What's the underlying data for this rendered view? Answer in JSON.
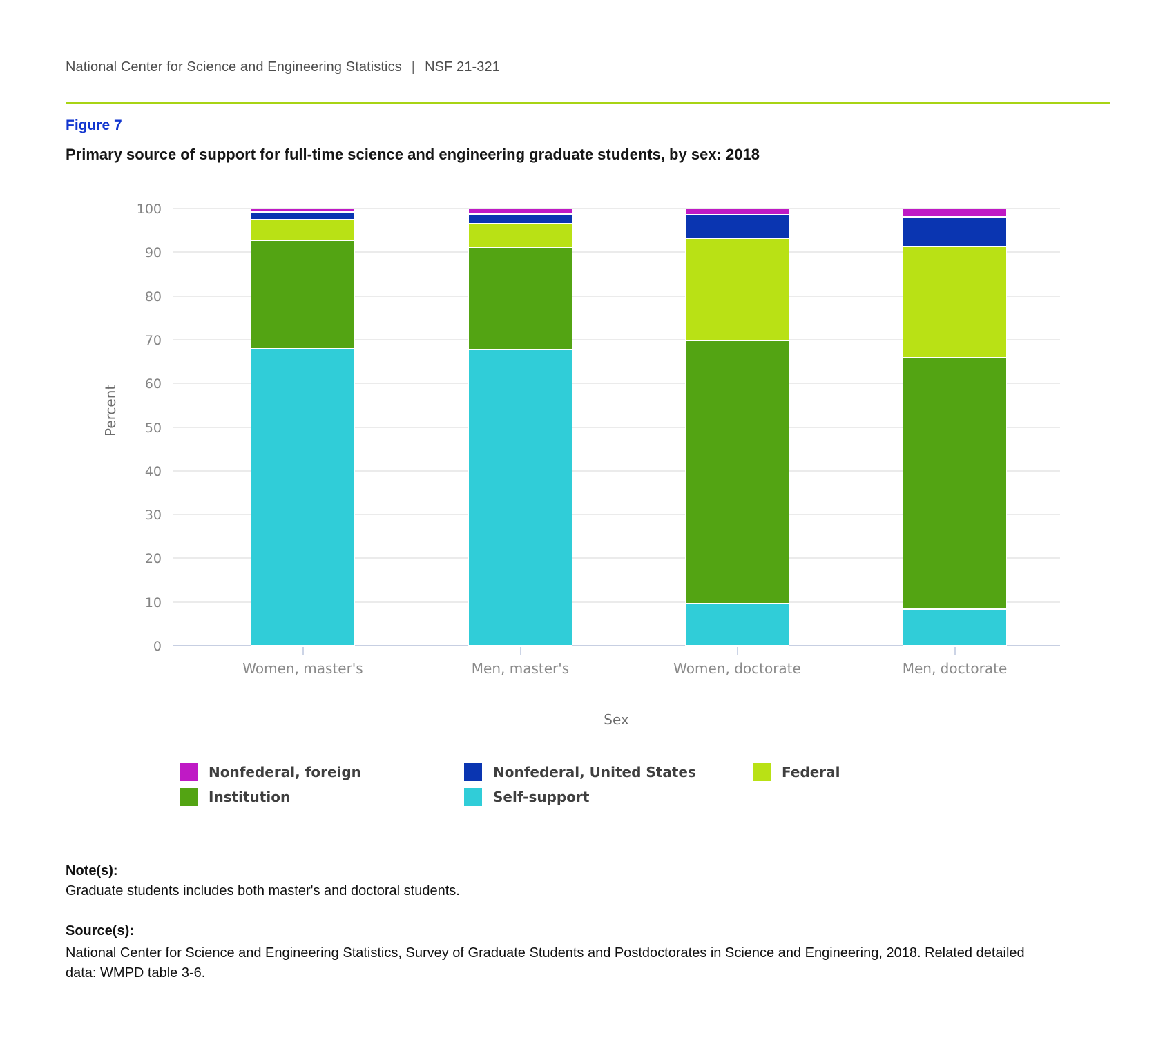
{
  "header": {
    "org": "National Center for Science and Engineering Statistics",
    "separator": "|",
    "report_id": "NSF 21-321"
  },
  "figure": {
    "label": "Figure 7",
    "title": "Primary source of support for full-time science and engineering graduate students, by sex: 2018"
  },
  "chart_data": {
    "type": "bar",
    "stacked": true,
    "title": "Primary source of support for full-time science and engineering graduate students, by sex: 2018",
    "xlabel": "Sex",
    "ylabel": "Percent",
    "ylim": [
      0,
      100
    ],
    "ytick_step": 10,
    "grid": true,
    "legend_position": "bottom",
    "categories": [
      "Women, master's",
      "Men, master's",
      "Women, doctorate",
      "Men, doctorate"
    ],
    "stack_order_bottom_to_top": [
      "Self-support",
      "Institution",
      "Federal",
      "Nonfederal, United States",
      "Nonfederal, foreign"
    ],
    "series": [
      {
        "name": "Nonfederal, foreign",
        "color": "#bf1ac5",
        "values": [
          0.8,
          1.2,
          1.4,
          1.9
        ]
      },
      {
        "name": "Nonfederal, United States",
        "color": "#0a35b1",
        "values": [
          1.8,
          2.3,
          5.4,
          6.8
        ]
      },
      {
        "name": "Federal",
        "color": "#b9e115",
        "values": [
          4.6,
          5.3,
          23.4,
          25.5
        ]
      },
      {
        "name": "Institution",
        "color": "#53a413",
        "values": [
          24.8,
          23.5,
          60.1,
          57.4
        ]
      },
      {
        "name": "Self-support",
        "color": "#30cdd8",
        "values": [
          68.0,
          67.7,
          9.7,
          8.4
        ]
      }
    ]
  },
  "notes": {
    "label": "Note(s):",
    "text": "Graduate students includes both master's and doctoral students."
  },
  "source": {
    "label": "Source(s):",
    "text": "National Center for Science and Engineering Statistics, Survey of Graduate Students and Postdoctorates in Science and Engineering, 2018. Related detailed data: WMPD table 3-6."
  },
  "colors": {
    "divider": "#a8d414",
    "figure_label": "#1236cf",
    "axis_line": "#c7cfe2",
    "gridline": "#ebebeb",
    "tick_label": "#848484",
    "axis_title": "#6d6d6d",
    "legend_text": "#3f3f3f"
  }
}
